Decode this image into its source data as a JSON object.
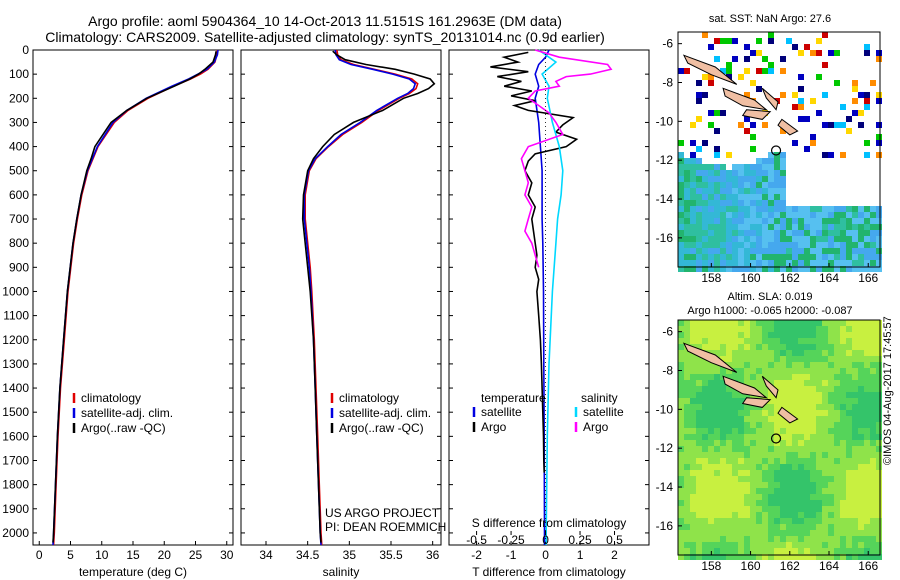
{
  "header": {
    "line1": "Argo profile: aoml 5904364_10 14-Oct-2013 11.5151S 161.2963E (DM data)",
    "line2": "Climatology: CARS2009. Satellite-adjusted climatology: synTS_20131014.nc (0.9d earlier)"
  },
  "colors": {
    "climatology": "#e00000",
    "satellite": "#0000e0",
    "argo": "#000000",
    "sal_satellite": "#00d8ff",
    "sal_argo": "#ff00ff"
  },
  "depth_axis": {
    "ylim": [
      0,
      2050
    ],
    "ticks": [
      0,
      100,
      200,
      300,
      400,
      500,
      600,
      700,
      800,
      900,
      1000,
      1100,
      1200,
      1300,
      1400,
      1500,
      1600,
      1700,
      1800,
      1900,
      2000
    ],
    "tick_labels": [
      "0",
      "100",
      "200",
      "300",
      "400",
      "500",
      "600",
      "700",
      "800",
      "900",
      "1000",
      "1100",
      "1200",
      "1300",
      "1400",
      "1500",
      "1600",
      "1700",
      "1800",
      "1900",
      "2000"
    ]
  },
  "chart_data": [
    {
      "type": "line",
      "id": "temperature",
      "xlabel": "temperature (deg C)",
      "xlim": [
        -1,
        31
      ],
      "xticks": [
        0,
        5,
        10,
        15,
        20,
        25,
        30
      ],
      "xtick_labels": [
        "0",
        "5",
        "10",
        "15",
        "20",
        "25",
        "30"
      ],
      "legend": [
        "climatology",
        "satellite-adj. clim.",
        "Argo(..raw -QC)"
      ],
      "series": [
        {
          "name": "climatology",
          "color": "#e00000",
          "depth": [
            0,
            20,
            50,
            80,
            100,
            120,
            150,
            200,
            250,
            300,
            400,
            500,
            600,
            700,
            800,
            1000,
            1200,
            1400,
            1600,
            1800,
            2000,
            2050
          ],
          "values": [
            28.5,
            28.4,
            28.1,
            27,
            25.8,
            24.2,
            21.5,
            17.4,
            14.2,
            12,
            9.4,
            7.8,
            6.8,
            6.1,
            5.5,
            4.6,
            4,
            3.4,
            3,
            2.7,
            2.4,
            2.3
          ]
        },
        {
          "name": "satellite",
          "color": "#0000e0",
          "depth": [
            0,
            20,
            50,
            80,
            100,
            120,
            150,
            200,
            250,
            300,
            400,
            500,
            600,
            700,
            800,
            1000,
            1200,
            1400,
            1600,
            1800,
            2000,
            2050
          ],
          "values": [
            28.6,
            28.5,
            28,
            26.8,
            25.4,
            23.9,
            21.2,
            17.1,
            14,
            11.8,
            9.3,
            7.7,
            6.7,
            6,
            5.4,
            4.5,
            3.9,
            3.3,
            2.9,
            2.6,
            2.3,
            2.2
          ]
        },
        {
          "name": "Argo",
          "color": "#000000",
          "depth": [
            5,
            20,
            50,
            80,
            100,
            120,
            150,
            200,
            250,
            300,
            400,
            450,
            500,
            600,
            700,
            800,
            1000,
            1200,
            1400,
            1600,
            1800,
            2000,
            2040
          ],
          "values": [
            28.3,
            28.2,
            27.8,
            26.5,
            25.5,
            24.1,
            21.6,
            17.2,
            14,
            11.5,
            8.9,
            8.3,
            7.6,
            6.7,
            6,
            5.4,
            4.5,
            3.9,
            3.3,
            2.9,
            2.6,
            2.3,
            2.2
          ]
        }
      ]
    },
    {
      "type": "line",
      "id": "salinity",
      "xlabel": "salinity",
      "xlim": [
        33.7,
        36.1
      ],
      "xticks": [
        34,
        34.5,
        35,
        35.5,
        36
      ],
      "xtick_labels": [
        "34",
        "34.5",
        "35",
        "35.5",
        "36"
      ],
      "legend": [
        "climatology",
        "satellite-adj. clim.",
        "Argo(..raw -QC)"
      ],
      "credit": [
        "US ARGO PROJECT",
        "PI: DEAN ROEMMICH"
      ],
      "series": [
        {
          "name": "climatology",
          "color": "#e00000",
          "depth": [
            0,
            20,
            40,
            60,
            80,
            100,
            120,
            140,
            160,
            180,
            200,
            250,
            300,
            350,
            400,
            450,
            500,
            600,
            700,
            800,
            900,
            1000,
            1200,
            1400,
            1600,
            1800,
            2000,
            2050
          ],
          "values": [
            34.85,
            34.86,
            34.9,
            35.05,
            35.3,
            35.55,
            35.75,
            35.82,
            35.8,
            35.72,
            35.6,
            35.35,
            35.15,
            34.92,
            34.75,
            34.6,
            34.52,
            34.47,
            34.47,
            34.5,
            34.53,
            34.55,
            34.58,
            34.6,
            34.62,
            34.64,
            34.66,
            34.67
          ]
        },
        {
          "name": "satellite",
          "color": "#0000e0",
          "depth": [
            0,
            20,
            40,
            60,
            80,
            100,
            120,
            140,
            160,
            180,
            200,
            250,
            300,
            350,
            400,
            450,
            500,
            600,
            700,
            800,
            900,
            1000,
            1200,
            1400,
            1600,
            1800,
            2000,
            2050
          ],
          "values": [
            34.83,
            34.84,
            34.88,
            35.02,
            35.28,
            35.52,
            35.72,
            35.79,
            35.77,
            35.7,
            35.58,
            35.33,
            35.13,
            34.9,
            34.74,
            34.59,
            34.51,
            34.46,
            34.46,
            34.49,
            34.52,
            34.54,
            34.57,
            34.59,
            34.61,
            34.63,
            34.65,
            34.66
          ]
        },
        {
          "name": "Argo",
          "color": "#000000",
          "depth": [
            5,
            20,
            40,
            60,
            80,
            100,
            120,
            140,
            160,
            180,
            200,
            250,
            300,
            350,
            400,
            450,
            500,
            600,
            700,
            800,
            900,
            1000,
            1200,
            1400,
            1600,
            1800,
            2000,
            2040
          ],
          "values": [
            34.8,
            34.85,
            34.95,
            35.2,
            35.55,
            35.78,
            35.97,
            36.02,
            35.95,
            35.82,
            35.65,
            35.4,
            35.05,
            34.82,
            34.68,
            34.57,
            34.5,
            34.45,
            34.44,
            34.47,
            34.5,
            34.53,
            34.57,
            34.59,
            34.61,
            34.63,
            34.65,
            34.66
          ]
        }
      ]
    },
    {
      "type": "line",
      "id": "differences",
      "xlabel": "T difference from climatology",
      "xlabel_top": "S difference from climatology",
      "xlim": [
        -2.8,
        3
      ],
      "xticks": [
        -2,
        -1,
        0,
        1,
        2
      ],
      "xtick_labels": [
        "-2",
        "-1",
        "0",
        "1",
        "2"
      ],
      "sticks": [
        -2,
        -1,
        0,
        1,
        2
      ],
      "stick_labels": [
        "-0.5",
        "-0.25",
        "0",
        "0.25",
        "0.5"
      ],
      "legend_temperature": {
        "title": "temperature",
        "items": [
          "satellite",
          "Argo"
        ]
      },
      "legend_salinity": {
        "title": "salinity",
        "items": [
          "satellite",
          "Argo"
        ]
      },
      "series": [
        {
          "name": "T satellite",
          "color": "#0000e0",
          "depth": [
            0,
            30,
            60,
            100,
            150,
            200,
            300,
            400,
            500,
            600,
            700,
            800,
            1000,
            1300,
            1600,
            2000,
            2050
          ],
          "values": [
            0.1,
            0,
            -0.2,
            -0.3,
            -0.2,
            -0.3,
            -0.2,
            -0.15,
            -0.1,
            -0.1,
            -0.1,
            -0.08,
            -0.06,
            -0.05,
            -0.04,
            -0.03,
            -0.03
          ]
        },
        {
          "name": "T Argo",
          "color": "#000000",
          "depth": [
            10,
            30,
            50,
            70,
            90,
            110,
            130,
            150,
            170,
            190,
            210,
            230,
            250,
            280,
            310,
            340,
            370,
            400,
            430,
            460,
            500,
            550,
            600,
            650,
            700,
            750,
            800,
            850,
            900,
            950,
            1000,
            1100,
            1200,
            1300,
            1400,
            1500,
            1600,
            1700,
            1750
          ],
          "values": [
            -0.5,
            -1.2,
            -0.8,
            -1.6,
            -0.5,
            -1.4,
            -0.7,
            -1.2,
            -0.4,
            -1,
            -0.3,
            -0.9,
            -0.5,
            0.8,
            0.5,
            0.3,
            0.9,
            0.6,
            -0.3,
            -0.5,
            -0.6,
            -0.4,
            -0.5,
            -0.3,
            -0.4,
            -0.35,
            -0.3,
            -0.25,
            -0.3,
            -0.2,
            -0.25,
            -0.2,
            -0.15,
            -0.12,
            -0.1,
            -0.08,
            -0.06,
            -0.05,
            -0.04
          ]
        },
        {
          "name": "S satellite",
          "color": "#00d8ff",
          "depth": [
            0,
            50,
            100,
            150,
            200,
            300,
            400,
            500,
            600,
            700,
            800,
            1000,
            1300,
            1600,
            2000,
            2050
          ],
          "values": [
            -0.2,
            0.3,
            -0.1,
            0.1,
            0.05,
            0.2,
            0.4,
            0.5,
            0.45,
            0.35,
            0.3,
            0.2,
            0.1,
            0.05,
            0.02,
            0.02
          ]
        },
        {
          "name": "S Argo",
          "color": "#ff00ff",
          "depth": [
            0,
            30,
            60,
            80,
            100,
            110,
            130,
            150,
            170,
            200,
            230,
            260,
            300,
            350,
            400,
            450,
            500,
            550,
            600,
            650,
            700,
            750,
            800,
            850,
            900
          ],
          "values": [
            -0.3,
            0.4,
            1.8,
            1.9,
            1.3,
            0.6,
            0.3,
            0.4,
            -0.3,
            -0.5,
            -0.2,
            0.1,
            0.3,
            0.5,
            -0.5,
            -0.7,
            -0.6,
            -0.5,
            -0.6,
            -0.4,
            -0.5,
            -0.6,
            -0.4,
            -0.3,
            -0.2
          ]
        }
      ]
    }
  ],
  "sst_map": {
    "title": "sat. SST: NaN Argo: 27.6",
    "xticks": [
      158,
      160,
      162,
      164,
      166
    ],
    "xtick_labels": [
      "158",
      "160",
      "162",
      "164",
      "166"
    ],
    "yticks": [
      -6,
      -8,
      -10,
      -12,
      -14,
      -16
    ],
    "ytick_labels": [
      "-6",
      "-8",
      "-10",
      "-12",
      "-14",
      "-16"
    ],
    "float_position": {
      "lon": 161.3,
      "lat": -11.5
    }
  },
  "sla_map": {
    "title": "Altim. SLA: 0.019",
    "subtitle": "Argo h1000: -0.065 h2000: -0.087",
    "xticks": [
      158,
      160,
      162,
      164,
      166
    ],
    "xtick_labels": [
      "158",
      "160",
      "162",
      "164",
      "166"
    ],
    "yticks": [
      -6,
      -8,
      -10,
      -12,
      -14,
      -16
    ],
    "ytick_labels": [
      "-6",
      "-8",
      "-10",
      "-12",
      "-14",
      "-16"
    ],
    "float_position": {
      "lon": 161.3,
      "lat": -11.5
    }
  },
  "footer": {
    "stamp": "©IMOS 04-Aug-2017 17:45:57"
  }
}
